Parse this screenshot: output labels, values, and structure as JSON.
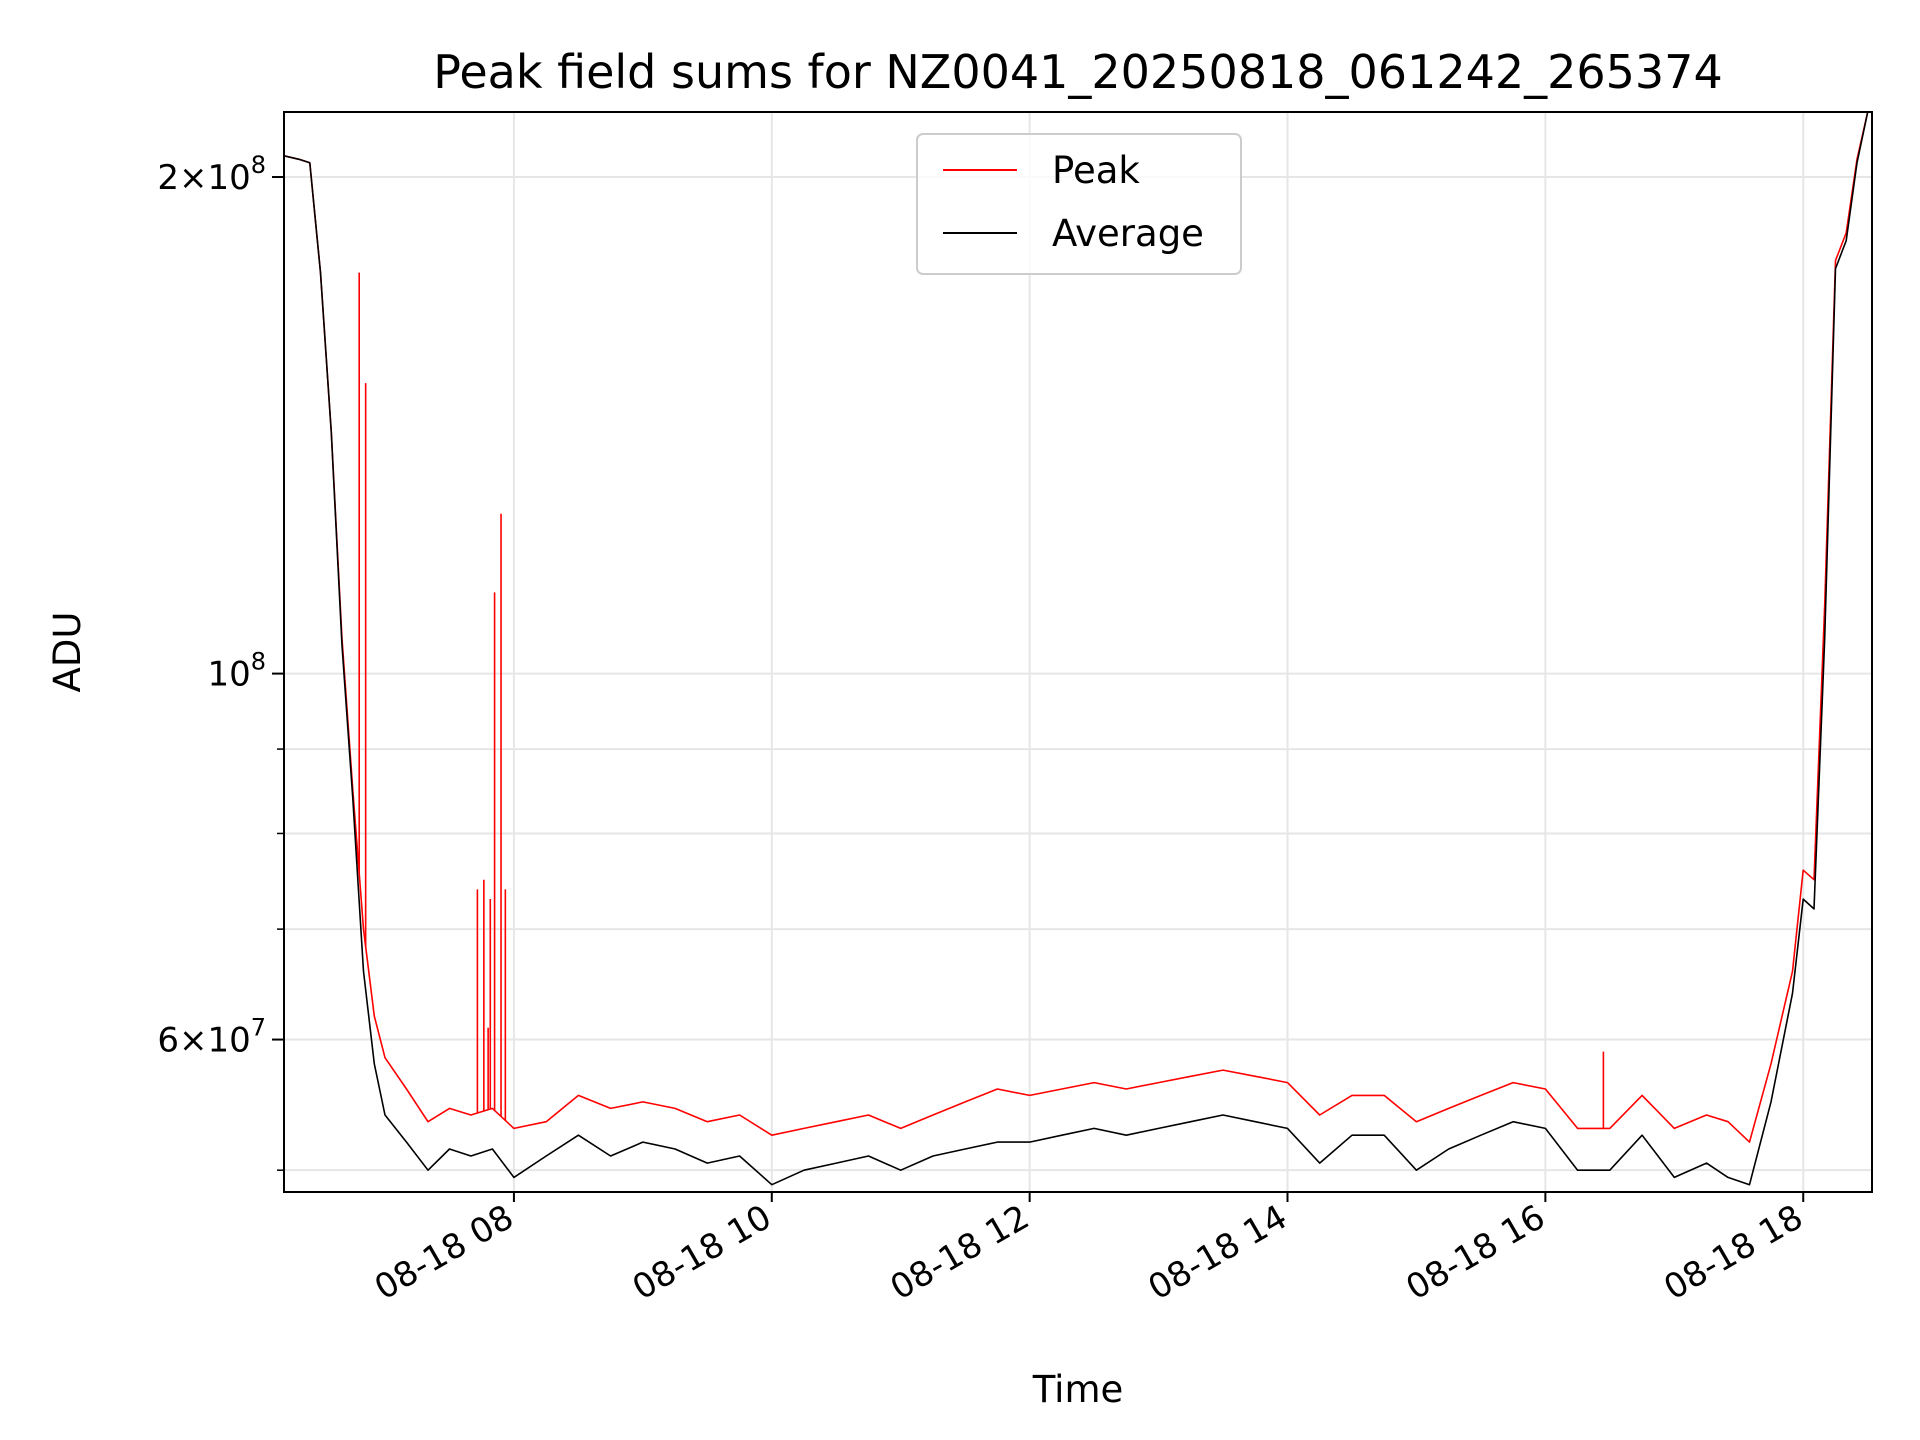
{
  "chart_data": {
    "type": "line",
    "title": "Peak field sums for NZ0041_20250818_061242_265374",
    "xlabel": "Time",
    "ylabel": "ADU",
    "yscale": "log",
    "xlim": [
      "2025-08-18 06:13",
      "2025-08-18 18:32"
    ],
    "ylim": [
      48500000,
      219000000
    ],
    "grid": true,
    "legend_position": "top-center",
    "x_ticks": [
      {
        "value": "2025-08-18 08:00",
        "label": "08-18 08"
      },
      {
        "value": "2025-08-18 10:00",
        "label": "08-18 10"
      },
      {
        "value": "2025-08-18 12:00",
        "label": "08-18 12"
      },
      {
        "value": "2025-08-18 14:00",
        "label": "08-18 14"
      },
      {
        "value": "2025-08-18 16:00",
        "label": "08-18 16"
      },
      {
        "value": "2025-08-18 18:00",
        "label": "08-18 18"
      }
    ],
    "y_ticks": [
      {
        "value": 200000000,
        "mantissa": "2",
        "exponent": "8"
      },
      {
        "value": 100000000,
        "mantissa": "",
        "exponent": "8"
      },
      {
        "value": 60000000,
        "mantissa": "6",
        "exponent": "7"
      }
    ],
    "y_minor_ticks": [
      50000000,
      70000000,
      80000000,
      90000000
    ],
    "x": [
      "2025-08-18 06:13",
      "2025-08-18 06:20",
      "2025-08-18 06:25",
      "2025-08-18 06:30",
      "2025-08-18 06:35",
      "2025-08-18 06:40",
      "2025-08-18 06:45",
      "2025-08-18 06:50",
      "2025-08-18 06:55",
      "2025-08-18 07:00",
      "2025-08-18 07:10",
      "2025-08-18 07:20",
      "2025-08-18 07:30",
      "2025-08-18 07:40",
      "2025-08-18 07:50",
      "2025-08-18 08:00",
      "2025-08-18 08:15",
      "2025-08-18 08:30",
      "2025-08-18 08:45",
      "2025-08-18 09:00",
      "2025-08-18 09:15",
      "2025-08-18 09:30",
      "2025-08-18 09:45",
      "2025-08-18 10:00",
      "2025-08-18 10:15",
      "2025-08-18 10:30",
      "2025-08-18 10:45",
      "2025-08-18 11:00",
      "2025-08-18 11:15",
      "2025-08-18 11:30",
      "2025-08-18 11:45",
      "2025-08-18 12:00",
      "2025-08-18 12:15",
      "2025-08-18 12:30",
      "2025-08-18 12:45",
      "2025-08-18 13:00",
      "2025-08-18 13:15",
      "2025-08-18 13:30",
      "2025-08-18 13:45",
      "2025-08-18 14:00",
      "2025-08-18 14:15",
      "2025-08-18 14:30",
      "2025-08-18 14:45",
      "2025-08-18 15:00",
      "2025-08-18 15:15",
      "2025-08-18 15:30",
      "2025-08-18 15:45",
      "2025-08-18 16:00",
      "2025-08-18 16:15",
      "2025-08-18 16:30",
      "2025-08-18 16:45",
      "2025-08-18 17:00",
      "2025-08-18 17:15",
      "2025-08-18 17:25",
      "2025-08-18 17:35",
      "2025-08-18 17:45",
      "2025-08-18 17:55",
      "2025-08-18 18:00",
      "2025-08-18 18:05",
      "2025-08-18 18:10",
      "2025-08-18 18:15",
      "2025-08-18 18:20",
      "2025-08-18 18:25",
      "2025-08-18 18:30"
    ],
    "series": [
      {
        "name": "Peak",
        "color": "#ff0000",
        "values": [
          206000000,
          205000000,
          204000000,
          175000000,
          140000000,
          105000000,
          85000000,
          70000000,
          62000000,
          58500000,
          56000000,
          53500000,
          54500000,
          54000000,
          54500000,
          53000000,
          53500000,
          55500000,
          54500000,
          55000000,
          54500000,
          53500000,
          54000000,
          52500000,
          53000000,
          53500000,
          54000000,
          53000000,
          54000000,
          55000000,
          56000000,
          55500000,
          56000000,
          56500000,
          56000000,
          56500000,
          57000000,
          57500000,
          57000000,
          56500000,
          54000000,
          55500000,
          55500000,
          53500000,
          54500000,
          55500000,
          56500000,
          56000000,
          53000000,
          53000000,
          55500000,
          53000000,
          54000000,
          53500000,
          52000000,
          58000000,
          66000000,
          76000000,
          75000000,
          110000000,
          178000000,
          185000000,
          205000000,
          219000000
        ]
      },
      {
        "name": "Average",
        "color": "#000000",
        "values": [
          206000000,
          205000000,
          204000000,
          175000000,
          140000000,
          104000000,
          84000000,
          66000000,
          58000000,
          54000000,
          52000000,
          50000000,
          51500000,
          51000000,
          51500000,
          49500000,
          51000000,
          52500000,
          51000000,
          52000000,
          51500000,
          50500000,
          51000000,
          49000000,
          50000000,
          50500000,
          51000000,
          50000000,
          51000000,
          51500000,
          52000000,
          52000000,
          52500000,
          53000000,
          52500000,
          53000000,
          53500000,
          54000000,
          53500000,
          53000000,
          50500000,
          52500000,
          52500000,
          50000000,
          51500000,
          52500000,
          53500000,
          53000000,
          50000000,
          50000000,
          52500000,
          49500000,
          50500000,
          49500000,
          49000000,
          55000000,
          64000000,
          73000000,
          72000000,
          105000000,
          176000000,
          183000000,
          204000000,
          219000000
        ]
      }
    ],
    "spikes": {
      "series": "Peak",
      "points": [
        {
          "x": "2025-08-18 06:48",
          "y": 175000000
        },
        {
          "x": "2025-08-18 06:51",
          "y": 150000000
        },
        {
          "x": "2025-08-18 07:43",
          "y": 74000000
        },
        {
          "x": "2025-08-18 07:46",
          "y": 75000000
        },
        {
          "x": "2025-08-18 07:48",
          "y": 61000000
        },
        {
          "x": "2025-08-18 07:49",
          "y": 73000000
        },
        {
          "x": "2025-08-18 07:51",
          "y": 112000000
        },
        {
          "x": "2025-08-18 07:54",
          "y": 125000000
        },
        {
          "x": "2025-08-18 07:56",
          "y": 74000000
        },
        {
          "x": "2025-08-18 16:27",
          "y": 59000000
        }
      ]
    }
  }
}
